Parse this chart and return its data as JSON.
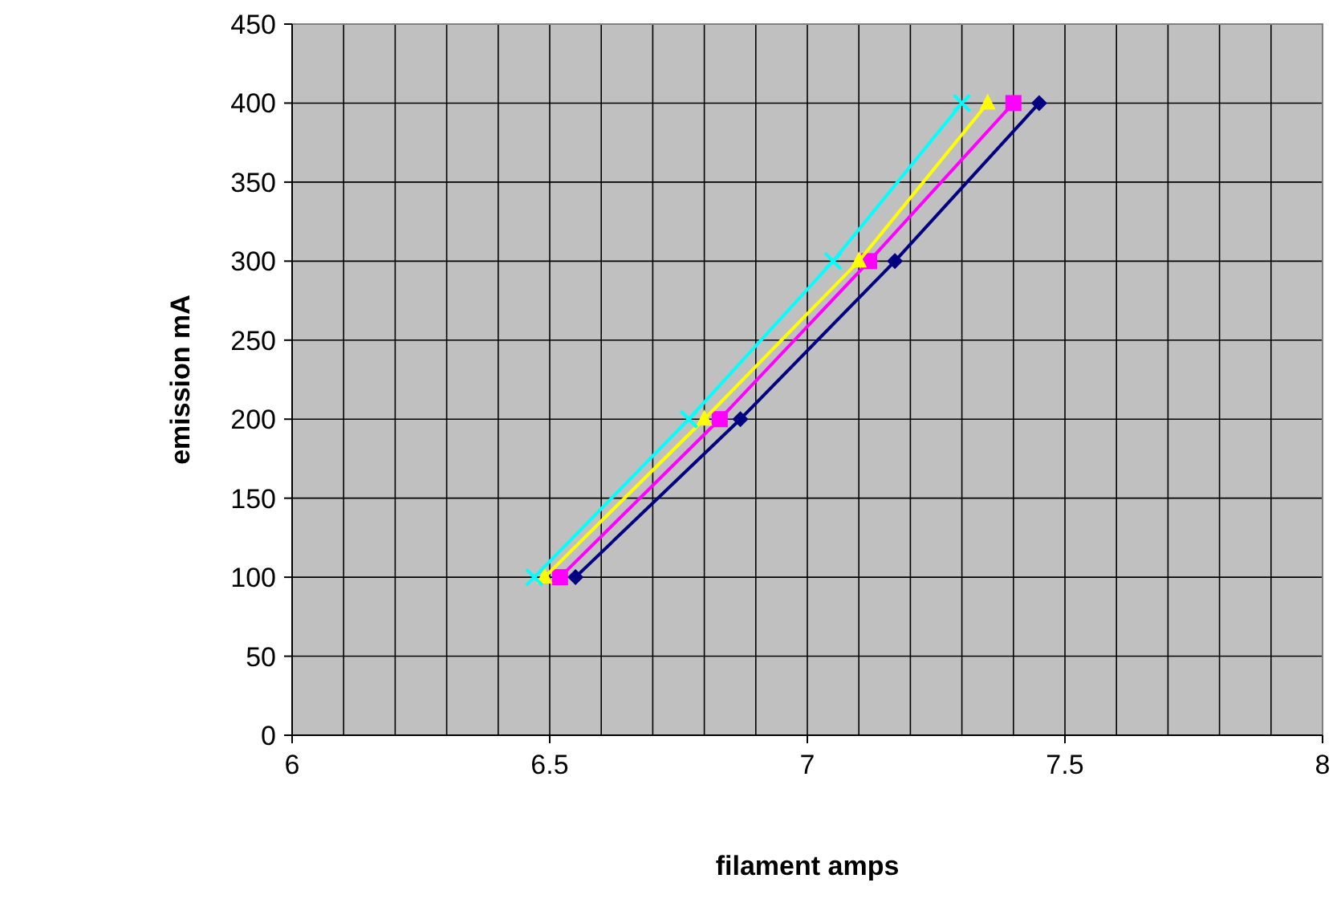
{
  "chart_data": {
    "type": "line",
    "xlabel": "filament amps",
    "ylabel": "emission mA",
    "xlim": [
      6,
      8
    ],
    "ylim": [
      0,
      450
    ],
    "xticks": [
      6,
      {
        "value": 6.1,
        "label": null
      },
      {
        "value": 6.2,
        "label": null
      },
      {
        "value": 6.3,
        "label": null
      },
      {
        "value": 6.4,
        "label": null
      },
      6.5,
      {
        "value": 6.6,
        "label": null
      },
      {
        "value": 6.7,
        "label": null
      },
      {
        "value": 6.8,
        "label": null
      },
      {
        "value": 6.9,
        "label": null
      },
      7,
      {
        "value": 7.1,
        "label": null
      },
      {
        "value": 7.2,
        "label": null
      },
      {
        "value": 7.3,
        "label": null
      },
      {
        "value": 7.4,
        "label": null
      },
      7.5,
      {
        "value": 7.6,
        "label": null
      },
      {
        "value": 7.7,
        "label": null
      },
      {
        "value": 7.8,
        "label": null
      },
      {
        "value": 7.9,
        "label": null
      },
      8
    ],
    "yticks": [
      0,
      50,
      100,
      150,
      200,
      250,
      300,
      350,
      400,
      450
    ],
    "grid": true,
    "line_style": "solid",
    "series": [
      {
        "color": "#000080",
        "marker": "diamond",
        "x": [
          6.55,
          6.87,
          7.17,
          7.45
        ],
        "values": [
          100,
          200,
          300,
          400
        ]
      },
      {
        "color": "#ff00ff",
        "marker": "square",
        "x": [
          6.52,
          6.83,
          7.12,
          7.4
        ],
        "values": [
          100,
          200,
          300,
          400
        ]
      },
      {
        "color": "#ffff00",
        "marker": "triangle",
        "x": [
          6.49,
          6.8,
          7.1,
          7.35
        ],
        "values": [
          100,
          200,
          300,
          400
        ]
      },
      {
        "color": "#00ffff",
        "marker": "cross",
        "x": [
          6.47,
          6.77,
          7.05,
          7.3
        ],
        "values": [
          100,
          200,
          300,
          400
        ]
      }
    ]
  }
}
